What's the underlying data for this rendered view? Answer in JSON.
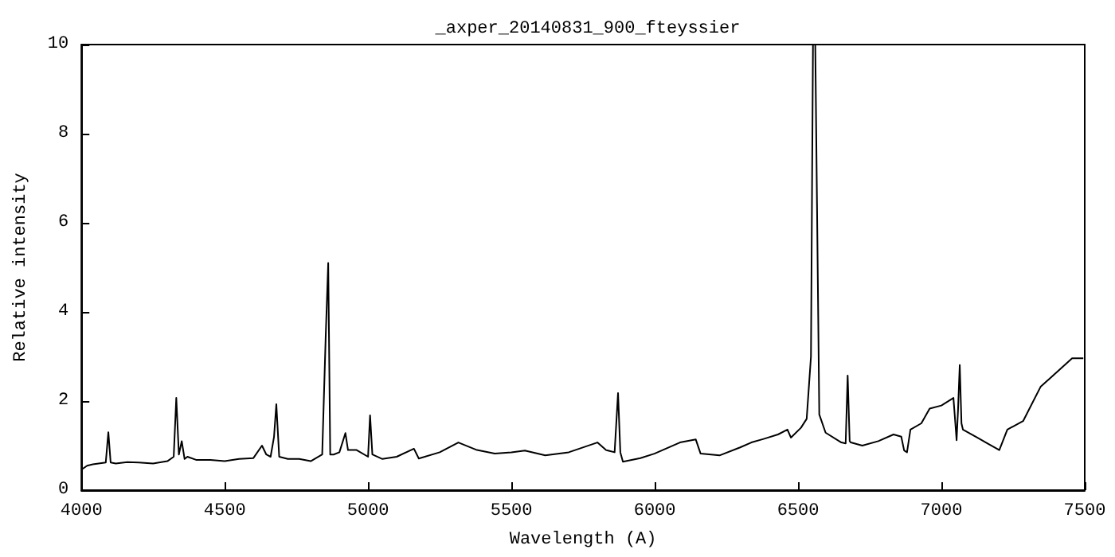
{
  "chart_data": {
    "type": "line",
    "title": "_axper_20140831_900_fteyssier",
    "xlabel": "Wavelength (A)",
    "ylabel": "Relative intensity",
    "x": [
      4000,
      4020,
      4040,
      4060,
      4085,
      4094,
      4102,
      4120,
      4160,
      4200,
      4250,
      4300,
      4322,
      4331,
      4340,
      4350,
      4360,
      4370,
      4400,
      4450,
      4500,
      4550,
      4600,
      4630,
      4645,
      4660,
      4672,
      4680,
      4690,
      4720,
      4760,
      4800,
      4840,
      4852,
      4861,
      4868,
      4880,
      4900,
      4921,
      4930,
      4960,
      5000,
      5007,
      5015,
      5050,
      5100,
      5160,
      5177,
      5250,
      5315,
      5380,
      5442,
      5500,
      5547,
      5618,
      5700,
      5800,
      5830,
      5860,
      5872,
      5880,
      5889,
      5950,
      5999,
      6088,
      6143,
      6160,
      6226,
      6298,
      6337,
      6380,
      6430,
      6463,
      6475,
      6510,
      6530,
      6545,
      6552,
      6560,
      6574,
      6596,
      6651,
      6666,
      6673,
      6680,
      6684,
      6724,
      6780,
      6833,
      6860,
      6870,
      6880,
      6892,
      6930,
      6959,
      7000,
      7042,
      7053,
      7058,
      7064,
      7070,
      7075,
      7125,
      7160,
      7202,
      7230,
      7285,
      7346,
      7384,
      7420,
      7456,
      7495
    ],
    "values": [
      0.46,
      0.55,
      0.58,
      0.6,
      0.62,
      1.3,
      0.62,
      0.6,
      0.63,
      0.62,
      0.6,
      0.65,
      0.75,
      2.07,
      0.8,
      1.1,
      0.7,
      0.75,
      0.68,
      0.68,
      0.65,
      0.7,
      0.72,
      1.0,
      0.8,
      0.75,
      1.2,
      1.93,
      0.75,
      0.7,
      0.7,
      0.65,
      0.8,
      3.4,
      5.1,
      0.8,
      0.8,
      0.85,
      1.28,
      0.9,
      0.9,
      0.75,
      1.68,
      0.8,
      0.7,
      0.75,
      0.93,
      0.71,
      0.85,
      1.07,
      0.9,
      0.82,
      0.85,
      0.89,
      0.78,
      0.85,
      1.07,
      0.9,
      0.85,
      2.18,
      0.85,
      0.64,
      0.72,
      0.82,
      1.07,
      1.14,
      0.82,
      0.78,
      0.96,
      1.07,
      1.15,
      1.25,
      1.36,
      1.18,
      1.4,
      1.6,
      3.0,
      10,
      10,
      1.7,
      1.29,
      1.07,
      1.05,
      2.57,
      1.1,
      1.07,
      1.0,
      1.1,
      1.25,
      1.2,
      0.89,
      0.85,
      1.36,
      1.5,
      1.83,
      1.9,
      2.07,
      1.12,
      1.8,
      2.81,
      1.5,
      1.36,
      1.18,
      1.05,
      0.9,
      1.36,
      1.55,
      2.32,
      2.54,
      2.75,
      2.96,
      2.96
    ],
    "color": "#000000",
    "xlim": [
      4000,
      7500
    ],
    "xticks": [
      4000,
      4500,
      5000,
      5500,
      6000,
      6500,
      7000,
      7500
    ],
    "ylim": [
      0,
      10
    ],
    "yticks": [
      0,
      2,
      4,
      6,
      8,
      10
    ],
    "grid": false,
    "marker": "none",
    "line_style": "solid"
  }
}
